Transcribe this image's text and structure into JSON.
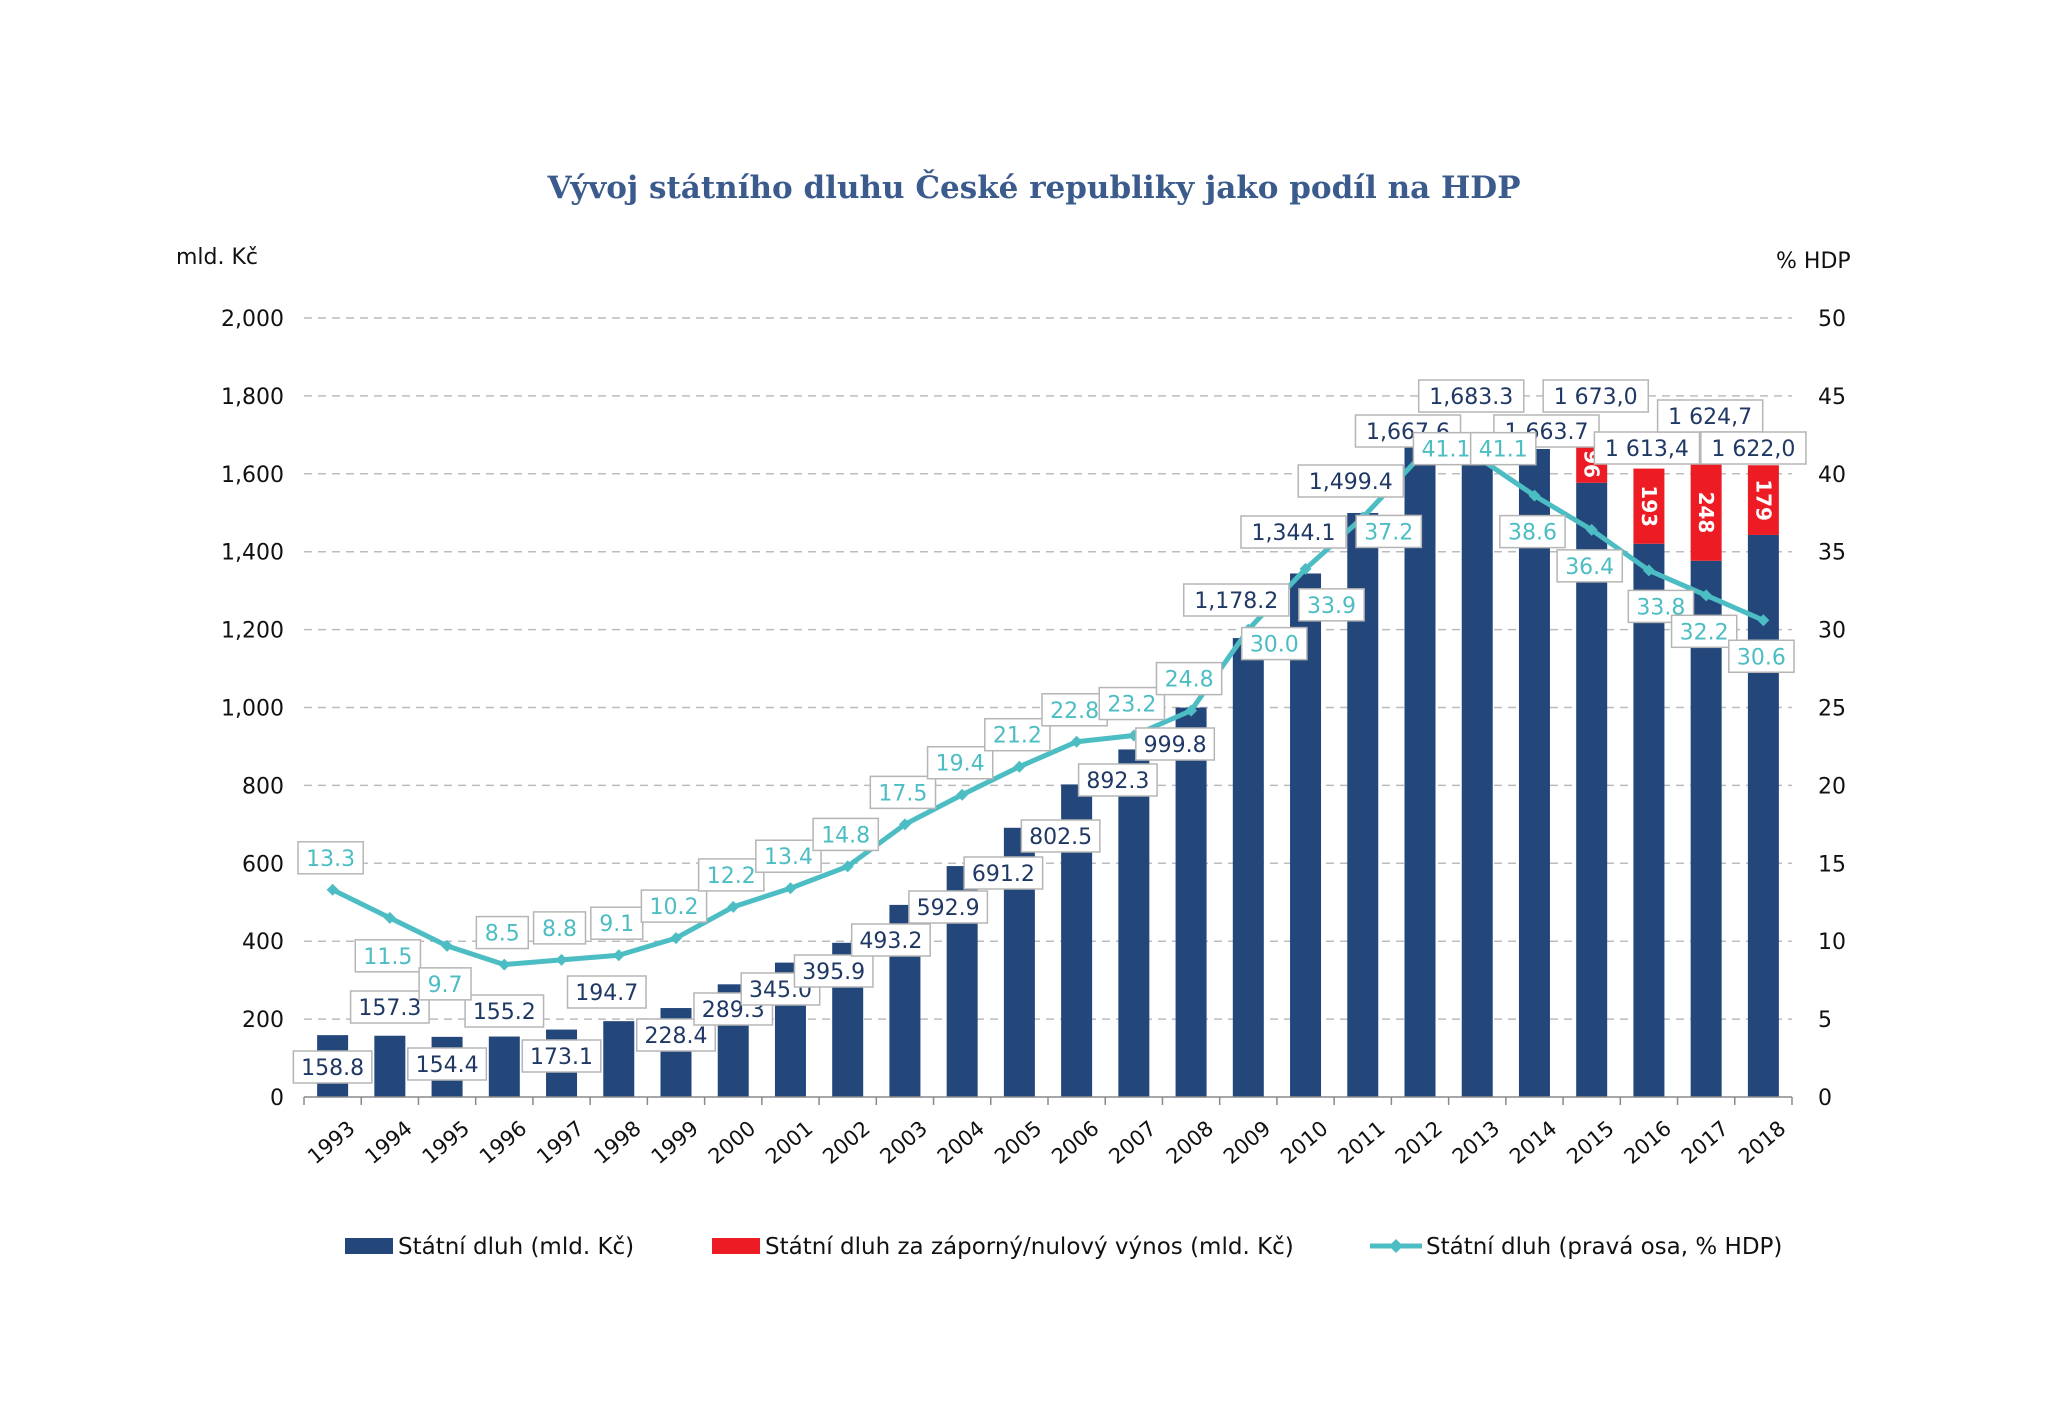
{
  "chart_data": {
    "type": "bar",
    "title": "Vývoj státního dluhu České republiky jako podíl na HDP",
    "ylabel": "mld. Kč",
    "y2label": "% HDP",
    "ylim": [
      0,
      2000
    ],
    "y2lim": [
      0,
      50
    ],
    "yticks": [
      "0",
      "200",
      "400",
      "600",
      "800",
      "1,000",
      "1,200",
      "1,400",
      "1,600",
      "1,800",
      "2,000"
    ],
    "y2ticks": [
      "0",
      "5",
      "10",
      "15",
      "20",
      "25",
      "30",
      "35",
      "40",
      "45",
      "50"
    ],
    "grid": true,
    "legend_position": "bottom",
    "categories": [
      "1993",
      "1994",
      "1995",
      "1996",
      "1997",
      "1998",
      "1999",
      "2000",
      "2001",
      "2002",
      "2003",
      "2004",
      "2005",
      "2006",
      "2007",
      "2008",
      "2009",
      "2010",
      "2011",
      "2012",
      "2013",
      "2014",
      "2015",
      "2016",
      "2017",
      "2018"
    ],
    "series": [
      {
        "name": "Státní dluh (mld. Kč)",
        "type": "bar",
        "color": "#23477a",
        "values": [
          158.8,
          157.3,
          154.4,
          155.2,
          173.1,
          194.7,
          228.4,
          289.3,
          345.0,
          395.9,
          493.2,
          592.9,
          691.2,
          802.5,
          892.3,
          999.8,
          1178.2,
          1344.1,
          1499.4,
          1667.6,
          1683.3,
          1663.7,
          1577.0,
          1420.4,
          1376.7,
          1443.0
        ]
      },
      {
        "name": "Státní dluh za záporný/nulový výnos (mld. Kč)",
        "type": "bar-stacked",
        "color": "#ed1c24",
        "values": [
          null,
          null,
          null,
          null,
          null,
          null,
          null,
          null,
          null,
          null,
          null,
          null,
          null,
          null,
          null,
          null,
          null,
          null,
          null,
          null,
          null,
          null,
          96,
          193,
          248,
          179
        ],
        "labels": [
          null,
          null,
          null,
          null,
          null,
          null,
          null,
          null,
          null,
          null,
          null,
          null,
          null,
          null,
          null,
          null,
          null,
          null,
          null,
          null,
          null,
          null,
          "96",
          "193",
          "248",
          "179"
        ]
      },
      {
        "name": "Státní dluh (pravá osa, % HDP)",
        "type": "line",
        "axis": "right",
        "color": "#4dbdc4",
        "values": [
          13.3,
          11.5,
          9.7,
          8.5,
          8.8,
          9.1,
          10.2,
          12.2,
          13.4,
          14.8,
          17.5,
          19.4,
          21.2,
          22.8,
          23.2,
          24.8,
          30.0,
          33.9,
          37.2,
          41.1,
          41.1,
          38.6,
          36.4,
          33.8,
          32.2,
          30.6
        ]
      }
    ],
    "total_labels": [
      "158.8",
      "157.3",
      "154.4",
      "155.2",
      "173.1",
      "194.7",
      "228.4",
      "289.3",
      "345.0",
      "395.9",
      "493.2",
      "592.9",
      "691.2",
      "802.5",
      "892.3",
      "999.8",
      "1,178.2",
      "1,344.1",
      "1,499.4",
      "1,667.6",
      "1,683.3",
      "1,663.7",
      "1 673,0",
      "1 613,4",
      "1 624,7",
      "1 622,0"
    ],
    "pct_labels": [
      "13.3",
      "11.5",
      "9.7",
      "8.5",
      "8.8",
      "9.1",
      "10.2",
      "12.2",
      "13.4",
      "14.8",
      "17.5",
      "19.4",
      "21.2",
      "22.8",
      "23.2",
      "24.8",
      "30.0",
      "33.9",
      "37.2",
      "41.1",
      "41.1",
      "38.6",
      "36.4",
      "33.8",
      "32.2",
      "30.6"
    ]
  }
}
